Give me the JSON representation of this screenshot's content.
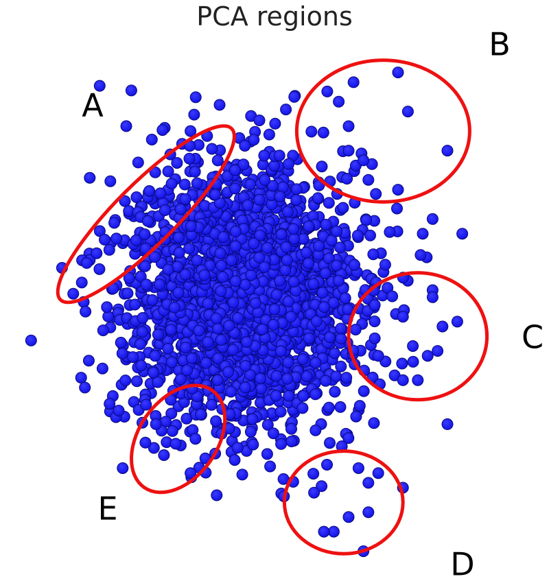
{
  "chart_data": {
    "type": "scatter",
    "title": "PCA regions",
    "xlabel": "",
    "ylabel": "",
    "xlim": [
      -5,
      5
    ],
    "ylim": [
      -5.3,
      5.3
    ],
    "grid": false,
    "legend": "none",
    "point_color": "#1a1aff",
    "region_color": "#ee1111",
    "regions": [
      {
        "label": "A",
        "center": [
          -2.6,
          1.9
        ],
        "rx": 2.45,
        "ry": 0.62,
        "angle_deg": -45
      },
      {
        "label": "B",
        "center": [
          2.2,
          3.6
        ],
        "rx": 1.75,
        "ry": 1.45,
        "angle_deg": 0
      },
      {
        "label": "C",
        "center": [
          2.9,
          -0.6
        ],
        "rx": 1.4,
        "ry": 1.3,
        "angle_deg": 0
      },
      {
        "label": "D",
        "center": [
          1.4,
          -4.0
        ],
        "rx": 1.2,
        "ry": 1.05,
        "angle_deg": 0
      },
      {
        "label": "E",
        "center": [
          -1.95,
          -2.7
        ],
        "rx": 1.2,
        "ry": 0.8,
        "angle_deg": -55
      }
    ],
    "outlier_points": [
      [
        -1.7,
        3.6
      ],
      [
        -0.6,
        3.3
      ],
      [
        -0.8,
        2.8
      ],
      [
        -1.2,
        2.3
      ],
      [
        -1.9,
        2.0
      ],
      [
        -3.2,
        1.4
      ],
      [
        -3.6,
        1.1
      ],
      [
        -4.3,
        0.8
      ],
      [
        -3.8,
        0.9
      ],
      [
        -3.9,
        0.5
      ],
      [
        2.5,
        4.8
      ],
      [
        1.6,
        4.6
      ],
      [
        1.3,
        4.2
      ],
      [
        1.5,
        3.7
      ],
      [
        2.7,
        4.0
      ],
      [
        3.5,
        3.2
      ],
      [
        1.8,
        3.0
      ],
      [
        2.5,
        2.4
      ],
      [
        1.9,
        2.6
      ],
      [
        1.5,
        3.2
      ],
      [
        3.2,
        0.2
      ],
      [
        2.6,
        -0.2
      ],
      [
        3.4,
        -0.4
      ],
      [
        3.7,
        -0.3
      ],
      [
        2.8,
        -0.8
      ],
      [
        3.1,
        -1.0
      ],
      [
        3.3,
        -0.9
      ],
      [
        2.1,
        -1.0
      ],
      [
        2.6,
        -1.5
      ],
      [
        2.9,
        -1.5
      ],
      [
        1.9,
        -4.2
      ],
      [
        2.1,
        -3.4
      ],
      [
        1.9,
        -3.6
      ],
      [
        0.8,
        -3.8
      ],
      [
        1.5,
        -4.3
      ],
      [
        1.2,
        -4.6
      ],
      [
        1.0,
        -4.6
      ],
      [
        2.6,
        -3.7
      ],
      [
        1.8,
        -5.0
      ],
      [
        1.7,
        -3.3
      ],
      [
        -2.1,
        -1.9
      ],
      [
        -2.4,
        -2.4
      ],
      [
        -1.6,
        -2.7
      ],
      [
        -2.0,
        -2.8
      ],
      [
        -1.4,
        -3.1
      ],
      [
        -1.7,
        -3.4
      ],
      [
        -1.2,
        -3.0
      ],
      [
        -2.6,
        -2.0
      ],
      [
        3.2,
        1.8
      ],
      [
        3.0,
        1.5
      ],
      [
        3.8,
        1.5
      ],
      [
        3.5,
        -2.4
      ],
      [
        0.4,
        4.3
      ],
      [
        0.1,
        3.1
      ],
      [
        -0.2,
        2.6
      ]
    ],
    "cluster": {
      "center": [
        -0.6,
        0.2
      ],
      "sd": [
        1.05,
        1.2
      ],
      "n": 2600
    }
  }
}
